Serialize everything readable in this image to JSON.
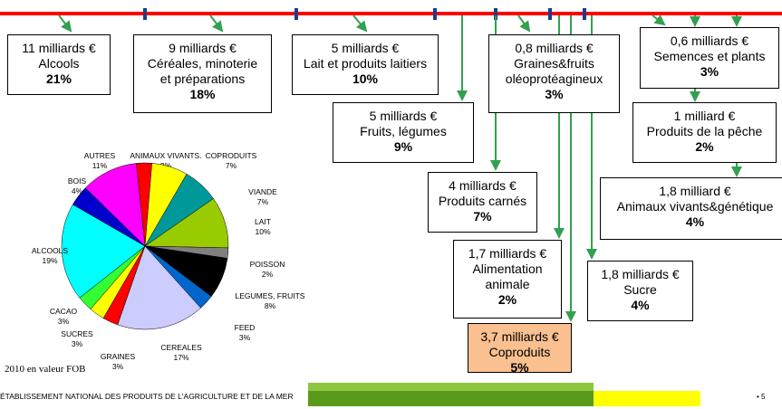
{
  "boxes": [
    {
      "lines": [
        "11 milliards €",
        "Alcools"
      ],
      "share": "21%"
    },
    {
      "lines": [
        "9 milliards €",
        "Céréales, minoterie",
        "et préparations"
      ],
      "share": "18%"
    },
    {
      "lines": [
        "5 milliards €",
        "Lait et produits laitiers"
      ],
      "share": "10%"
    },
    {
      "lines": [
        "5 milliards €",
        "Fruits, légumes"
      ],
      "share": "9%"
    },
    {
      "lines": [
        "0,8 milliards €",
        "Graines&fruits",
        "oléoprotéagineux"
      ],
      "share": "3%"
    },
    {
      "lines": [
        "0,6 milliards €",
        "Semences et plants"
      ],
      "share": "3%"
    },
    {
      "lines": [
        "1 milliard €",
        "Produits de la pêche"
      ],
      "share": "2%"
    },
    {
      "lines": [
        "1,8 milliard €",
        "Animaux vivants&génétique"
      ],
      "share": "4%"
    },
    {
      "lines": [
        "4 milliards €",
        "Produits carnés"
      ],
      "share": "7%"
    },
    {
      "lines": [
        "1,7 milliards €",
        "Alimentation",
        "animale"
      ],
      "share": "2%"
    },
    {
      "lines": [
        "1,8 milliards €",
        "Sucre"
      ],
      "share": "4%"
    },
    {
      "lines": [
        "3,7 milliards €",
        "Coproduits"
      ],
      "share": "5%"
    }
  ],
  "pie": {
    "slices": [
      {
        "label": "ANIMAUX VIVANTS.",
        "value": 3,
        "value_label": "3%",
        "color": "#ff0000"
      },
      {
        "label": "COPRODUITS",
        "value": 7,
        "value_label": "7%",
        "color": "#ffff00"
      },
      {
        "label": "VIANDE",
        "value": 7,
        "value_label": "7%",
        "color": "#009999"
      },
      {
        "label": "LAIT",
        "value": 10,
        "value_label": "10%",
        "color": "#99cc00"
      },
      {
        "label": "POISSON",
        "value": 2,
        "value_label": "2%",
        "color": "#808080"
      },
      {
        "label": "LEGUMES, FRUITS",
        "value": 8,
        "value_label": "8%",
        "color": "#000000"
      },
      {
        "label": "FEED",
        "value": 3,
        "value_label": "3%",
        "color": "#0066cc"
      },
      {
        "label": "CEREALES",
        "value": 17,
        "value_label": "17%",
        "color": "#ccccff"
      },
      {
        "label": "GRAINES",
        "value": 3,
        "value_label": "3%",
        "color": "#ff0000"
      },
      {
        "label": "SUCRES",
        "value": 3,
        "value_label": "3%",
        "color": "#ffff00"
      },
      {
        "label": "CACAO",
        "value": 3,
        "value_label": "3%",
        "color": "#33ff33"
      },
      {
        "label": "ALCOOLS",
        "value": 19,
        "value_label": "19%",
        "color": "#00ffff"
      },
      {
        "label": "BOIS",
        "value": 4,
        "value_label": "4%",
        "color": "#0000cc"
      },
      {
        "label": "AUTRES",
        "value": 11,
        "value_label": "11%",
        "color": "#ff00ff"
      }
    ]
  },
  "footer": {
    "note": "2010 en valeur FOB",
    "org": "ÉTABLISSEMENT NATIONAL DES PRODUITS DE L'AGRICULTURE ET DE LA MER",
    "page": "• 5"
  }
}
